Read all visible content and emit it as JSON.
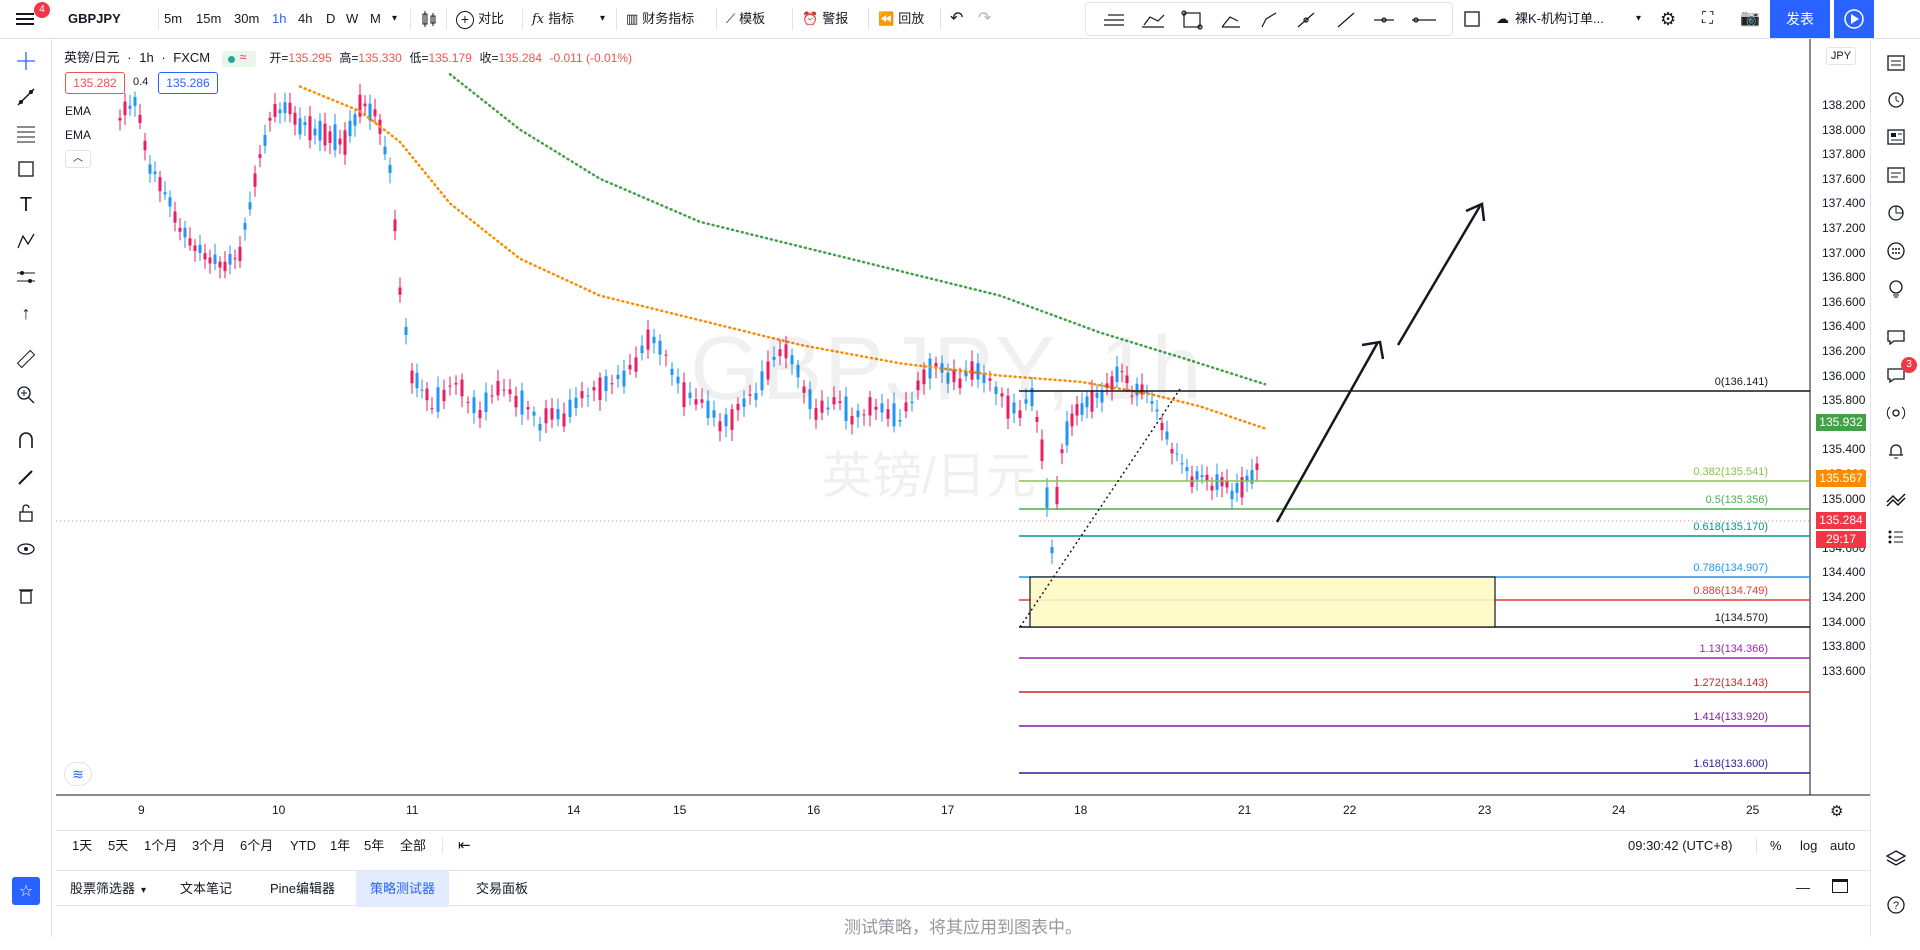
{
  "topbar": {
    "menu_badge": "4",
    "symbol": "GBPJPY",
    "intervals": [
      "5m",
      "15m",
      "30m",
      "1h",
      "4h",
      "D",
      "W",
      "M"
    ],
    "active_interval": "1h",
    "compare_label": "对比",
    "indicators_label": "指标",
    "financials_label": "财务指标",
    "templates_label": "模板",
    "alert_label": "警报",
    "replay_label": "回放",
    "layout_name": "裸K-机构订单...",
    "publish_label": "发表"
  },
  "legend": {
    "pair_name": "英镑/日元",
    "interval": "1h",
    "exchange": "FXCM",
    "open_label": "开=",
    "open": "135.295",
    "high_label": "高=",
    "high": "135.330",
    "low_label": "低=",
    "low": "135.179",
    "close_label": "收=",
    "close": "135.284",
    "change": "-0.011 (-0.01%)",
    "sell_price": "135.282",
    "spread": "0.4",
    "buy_price": "135.286",
    "indicators": [
      "EMA",
      "EMA"
    ]
  },
  "watermark": {
    "symbol_line": "GBPJPY, 1h",
    "name_line": "英镑/日元"
  },
  "price_axis": {
    "currency": "JPY",
    "ticks": [
      "138.200",
      "138.000",
      "137.800",
      "137.600",
      "137.400",
      "137.200",
      "137.000",
      "136.800",
      "136.600",
      "136.400",
      "136.200",
      "136.000",
      "135.800",
      "135.600",
      "135.400",
      "135.200",
      "135.000",
      "134.800",
      "134.600",
      "134.400",
      "134.200",
      "134.000",
      "133.800",
      "133.600"
    ],
    "ema_green": "135.932",
    "ema_orange": "135.567",
    "last_price": "135.284",
    "countdown": "29:17"
  },
  "time_axis": {
    "ticks": [
      "9",
      "10",
      "11",
      "14",
      "15",
      "16",
      "17",
      "18",
      "21",
      "22",
      "23",
      "24",
      "25"
    ]
  },
  "fib_levels": [
    {
      "label": "0(136.141)",
      "color": "#131722"
    },
    {
      "label": "0.382(135.541)",
      "color": "#8bc34a"
    },
    {
      "label": "0.5(135.356)",
      "color": "#4caf50"
    },
    {
      "label": "0.618(135.170)",
      "color": "#009688"
    },
    {
      "label": "0.786(134.907)",
      "color": "#2196f3"
    },
    {
      "label": "0.886(134.749)",
      "color": "#e53935"
    },
    {
      "label": "1(134.570)",
      "color": "#131722"
    },
    {
      "label": "1.13(134.366)",
      "color": "#9c27b0"
    },
    {
      "label": "1.272(134.143)",
      "color": "#c62828"
    },
    {
      "label": "1.414(133.920)",
      "color": "#7b1fa2"
    },
    {
      "label": "1.618(133.600)",
      "color": "#311b92"
    }
  ],
  "range_bar": {
    "ranges": [
      "1天",
      "5天",
      "1个月",
      "3个月",
      "6个月",
      "YTD",
      "1年",
      "5年",
      "全部"
    ],
    "time": "09:30:42 (UTC+8)",
    "percent": "%",
    "log": "log",
    "auto": "auto"
  },
  "panel": {
    "tabs": [
      "股票筛选器",
      "文本笔记",
      "Pine编辑器",
      "策略测试器",
      "交易面板"
    ],
    "active_tab": "策略测试器",
    "message": "测试策略，将其应用到图表中。"
  },
  "rightbar": {
    "notification_badge": "3"
  },
  "colors": {
    "up": "#26a69a",
    "down": "#ef5350",
    "candle_up": "#2196f3",
    "candle_down": "#e91e63",
    "ema_green": "#43a047",
    "ema_orange": "#fb8c00",
    "accent": "#2962ff"
  }
}
